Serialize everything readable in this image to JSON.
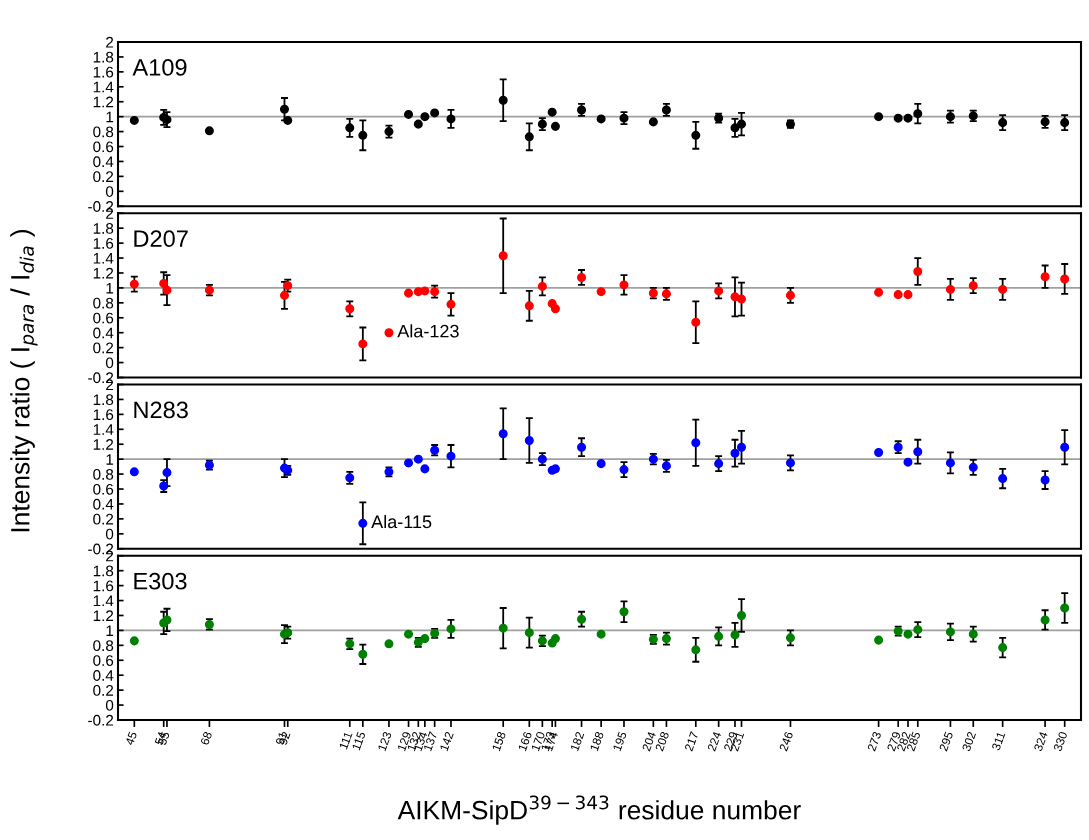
{
  "chart_data": [
    {
      "type": "scatter",
      "title": "A109",
      "ylabel": "Intensity ratio ( I$_{para}$ / I$_{dia}$ )",
      "marker": "circle",
      "grid": false,
      "tick_labels": "y",
      "x": [
        45,
        54,
        55,
        68,
        91,
        92,
        111,
        115,
        123,
        129,
        132,
        134,
        137,
        142,
        158,
        166,
        170,
        173,
        174,
        182,
        188,
        195,
        204,
        208,
        217,
        224,
        229,
        231,
        246,
        273,
        279,
        282,
        285,
        295,
        302,
        311,
        324,
        330
      ],
      "xlim": [
        40,
        335
      ],
      "ylim": [
        -0.2,
        2
      ],
      "yticks": [
        -0.2,
        0,
        0.2,
        0.4,
        0.6,
        0.8,
        1,
        1.2,
        1.4,
        1.6,
        1.8,
        2
      ],
      "ref_lines": [
        {
          "axis": "y",
          "value": 1,
          "color": "#a0a0a0"
        }
      ],
      "series": [
        {
          "color": "#000000",
          "values": [
            0.95,
            0.99,
            0.96,
            0.81,
            1.1,
            0.95,
            0.85,
            0.75,
            0.8,
            1.03,
            0.9,
            1.0,
            1.05,
            0.97,
            1.22,
            0.73,
            0.9,
            1.06,
            0.87,
            1.09,
            0.97,
            0.98,
            0.93,
            1.09,
            0.75,
            0.98,
            0.85,
            0.9,
            0.9,
            1.0,
            0.98,
            0.98,
            1.04,
            1.0,
            1.01,
            0.92,
            0.93,
            0.92
          ],
          "errors": [
            null,
            0.1,
            0.1,
            null,
            0.15,
            null,
            0.12,
            0.2,
            0.08,
            null,
            null,
            null,
            null,
            0.12,
            0.28,
            0.18,
            0.08,
            null,
            null,
            0.08,
            null,
            0.08,
            null,
            0.08,
            0.18,
            0.06,
            0.12,
            0.15,
            0.05,
            null,
            null,
            null,
            0.13,
            0.08,
            0.07,
            0.1,
            0.08,
            0.1
          ]
        }
      ]
    },
    {
      "type": "scatter",
      "title": "D207",
      "marker": "circle",
      "grid": false,
      "tick_labels": "y",
      "x": [
        45,
        54,
        55,
        68,
        91,
        92,
        111,
        115,
        123,
        129,
        132,
        134,
        137,
        142,
        158,
        166,
        170,
        173,
        174,
        182,
        188,
        195,
        204,
        208,
        217,
        224,
        229,
        231,
        246,
        273,
        279,
        282,
        285,
        295,
        302,
        311,
        324,
        330
      ],
      "xlim": [
        40,
        335
      ],
      "ylim": [
        -0.2,
        2
      ],
      "yticks": [
        -0.2,
        0,
        0.2,
        0.4,
        0.6,
        0.8,
        1,
        1.2,
        1.4,
        1.6,
        1.8,
        2
      ],
      "ref_lines": [
        {
          "axis": "y",
          "value": 1,
          "color": "#a0a0a0"
        }
      ],
      "annotations": [
        {
          "text": "Ala-123",
          "x": 123,
          "y": 0.4
        }
      ],
      "series": [
        {
          "color": "#ff0000",
          "values": [
            1.05,
            1.06,
            0.97,
            0.97,
            0.9,
            1.03,
            0.72,
            0.25,
            0.4,
            0.93,
            0.95,
            0.96,
            0.95,
            0.78,
            1.43,
            0.76,
            1.02,
            0.79,
            0.72,
            1.14,
            0.95,
            1.04,
            0.93,
            0.92,
            0.54,
            0.96,
            0.88,
            0.85,
            0.9,
            0.94,
            0.91,
            0.91,
            1.22,
            0.98,
            1.03,
            0.98,
            1.15,
            1.12
          ],
          "errors": [
            0.1,
            0.15,
            0.2,
            0.07,
            0.18,
            0.08,
            0.1,
            0.22,
            null,
            null,
            null,
            null,
            0.08,
            0.15,
            0.5,
            0.2,
            0.12,
            null,
            null,
            0.1,
            null,
            0.13,
            0.07,
            0.08,
            0.28,
            0.1,
            0.26,
            0.22,
            0.1,
            null,
            null,
            null,
            0.18,
            0.14,
            0.1,
            0.14,
            0.15,
            0.2
          ]
        }
      ]
    },
    {
      "type": "scatter",
      "title": "N283",
      "marker": "circle",
      "grid": false,
      "tick_labels": "y",
      "x": [
        45,
        54,
        55,
        68,
        91,
        92,
        111,
        115,
        123,
        129,
        132,
        134,
        137,
        142,
        158,
        166,
        170,
        173,
        174,
        182,
        188,
        195,
        204,
        208,
        217,
        224,
        229,
        231,
        246,
        273,
        279,
        282,
        285,
        295,
        302,
        311,
        324,
        330
      ],
      "xlim": [
        40,
        335
      ],
      "ylim": [
        -0.2,
        2
      ],
      "yticks": [
        -0.2,
        0,
        0.2,
        0.4,
        0.6,
        0.8,
        1,
        1.2,
        1.4,
        1.6,
        1.8,
        2
      ],
      "ref_lines": [
        {
          "axis": "y",
          "value": 1,
          "color": "#a0a0a0"
        }
      ],
      "annotations": [
        {
          "text": "Ala-115",
          "x": 115,
          "y": 0.14
        }
      ],
      "series": [
        {
          "color": "#0000ff",
          "values": [
            0.83,
            0.64,
            0.82,
            0.92,
            0.88,
            0.85,
            0.75,
            0.14,
            0.83,
            0.95,
            1.0,
            0.87,
            1.12,
            1.04,
            1.34,
            1.25,
            1.0,
            0.85,
            0.87,
            1.16,
            0.94,
            0.86,
            1.0,
            0.91,
            1.22,
            0.94,
            1.08,
            1.16,
            0.95,
            1.09,
            1.16,
            0.96,
            1.1,
            0.95,
            0.89,
            0.74,
            0.72,
            1.16
          ],
          "errors": [
            null,
            0.08,
            0.18,
            0.06,
            0.12,
            0.06,
            0.08,
            0.28,
            0.06,
            null,
            null,
            null,
            0.07,
            0.15,
            0.34,
            0.3,
            0.08,
            null,
            null,
            0.12,
            null,
            0.1,
            0.07,
            0.08,
            0.31,
            0.1,
            0.18,
            0.22,
            0.1,
            null,
            0.08,
            null,
            0.16,
            0.14,
            0.1,
            0.13,
            0.12,
            0.23
          ]
        }
      ]
    },
    {
      "type": "scatter",
      "title": "E303",
      "xlabel": "AIKM-SipD$^{39−343}$ residue number",
      "marker": "circle",
      "grid": false,
      "x": [
        45,
        54,
        55,
        68,
        91,
        92,
        111,
        115,
        123,
        129,
        132,
        134,
        137,
        142,
        158,
        166,
        170,
        173,
        174,
        182,
        188,
        195,
        204,
        208,
        217,
        224,
        229,
        231,
        246,
        273,
        279,
        282,
        285,
        295,
        302,
        311,
        324,
        330
      ],
      "xlim": [
        40,
        335
      ],
      "ylim": [
        -0.2,
        2
      ],
      "yticks": [
        -0.2,
        0,
        0.2,
        0.4,
        0.6,
        0.8,
        1,
        1.2,
        1.4,
        1.6,
        1.8,
        2
      ],
      "xticks": [
        45,
        54,
        55,
        68,
        91,
        92,
        111,
        115,
        123,
        129,
        132,
        134,
        137,
        142,
        158,
        166,
        170,
        173,
        174,
        182,
        188,
        195,
        204,
        208,
        217,
        224,
        229,
        231,
        246,
        273,
        279,
        282,
        285,
        295,
        302,
        311,
        324,
        330
      ],
      "ref_lines": [
        {
          "axis": "y",
          "value": 1,
          "color": "#a0a0a0"
        }
      ],
      "series": [
        {
          "color": "#008000",
          "values": [
            0.86,
            1.1,
            1.14,
            1.08,
            0.95,
            0.97,
            0.82,
            0.68,
            0.82,
            0.95,
            0.84,
            0.89,
            0.96,
            1.02,
            1.03,
            0.97,
            0.86,
            0.83,
            0.89,
            1.15,
            0.95,
            1.25,
            0.88,
            0.89,
            0.74,
            0.92,
            0.94,
            1.2,
            0.9,
            0.87,
            0.99,
            0.95,
            1.01,
            0.98,
            0.95,
            0.77,
            1.14,
            1.3
          ],
          "errors": [
            null,
            0.15,
            0.15,
            0.07,
            0.12,
            0.08,
            0.07,
            0.13,
            null,
            null,
            0.06,
            null,
            0.06,
            0.12,
            0.27,
            0.2,
            0.07,
            null,
            null,
            0.1,
            null,
            0.14,
            0.06,
            0.08,
            0.16,
            0.12,
            0.16,
            0.22,
            0.1,
            null,
            0.06,
            null,
            0.1,
            0.11,
            0.1,
            0.13,
            0.13,
            0.2
          ]
        }
      ]
    }
  ]
}
